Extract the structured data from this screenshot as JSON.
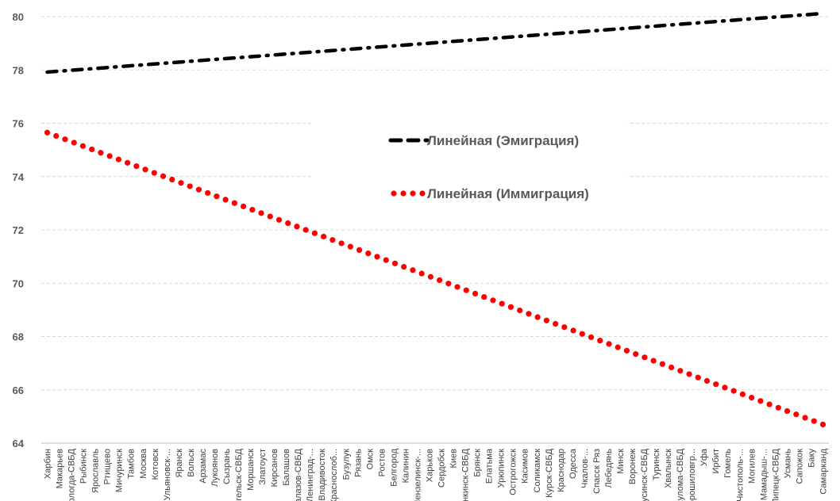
{
  "chart_data": {
    "type": "line",
    "title": "",
    "xlabel": "",
    "ylabel": "",
    "ylim": [
      64,
      80
    ],
    "yticks": [
      "64",
      "66",
      "68",
      "70",
      "72",
      "74",
      "76",
      "78",
      "80"
    ],
    "grid": true,
    "legend_position": "center-right",
    "categories": [
      "Харбин",
      "Макарьев",
      "Вологда-СВБД",
      "Рыбинск",
      "Ярославль",
      "Ртищево",
      "Мичуринск",
      "Тамбов",
      "Москва",
      "Котовск",
      "Ульяновск-...",
      "Яранск",
      "Вольск",
      "Арзамас",
      "Лукоянов",
      "Сызрань",
      "Архангельск-СВБД",
      "Моршанск",
      "Златоуст",
      "Кирсанов",
      "Балашов",
      "Балазов-СВБД",
      "Ленинград-...",
      "Владивосток",
      "Краснослоб...",
      "Бузулук",
      "Рязань",
      "Омск",
      "Ростов",
      "Белгород",
      "Калинин",
      "Пензелинск-...",
      "Харьков",
      "Сердобск",
      "Киев",
      "Пинкинск-СВБД",
      "Брянск",
      "Елатьма",
      "Урюпинск",
      "Острогожск",
      "Касимов",
      "Соликамск",
      "Курск-СВБД",
      "Краснодар",
      "Одесса",
      "Чкалов-...",
      "Спасск Ряз",
      "Лебедянь",
      "Минск",
      "Воронеж",
      "Минусинск-СВБД",
      "Туринск",
      "Хвалынск",
      "Кулома-СВБД",
      "Ворошиловгр...",
      "Уфа",
      "Ирбит",
      "Гомель",
      "Чистополь-...",
      "Могилев",
      "Мамадыш-...",
      "Липецк-СВБД",
      "Усмань",
      "Сапожок",
      "Баку",
      "Самарканд"
    ],
    "series": [
      {
        "name": "Линейная (Эмиграция)",
        "start": 77.92,
        "end": 80.12,
        "color": "#000000",
        "style": "dash-dot"
      },
      {
        "name": "Линейная (Иммиграция)",
        "start": 75.65,
        "end": 64.7,
        "color": "#ff0000",
        "style": "dotted"
      }
    ]
  }
}
